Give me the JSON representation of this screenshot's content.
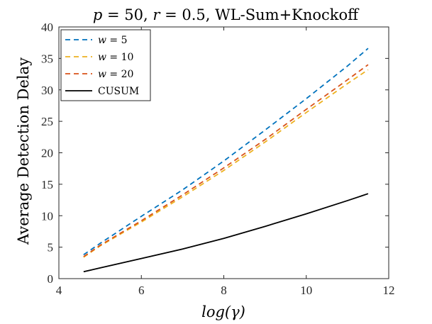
{
  "chart_data": {
    "type": "line",
    "title": "p = 50, r = 0.5, WL-Sum+Knockoff",
    "xlabel": "log(γ)",
    "ylabel": "Average Detection Delay",
    "xlim": [
      4,
      12
    ],
    "ylim": [
      0,
      40
    ],
    "xticks": [
      4,
      6,
      8,
      10,
      12
    ],
    "yticks": [
      0,
      5,
      10,
      15,
      20,
      25,
      30,
      35,
      40
    ],
    "grid": false,
    "legend_position": "top-left",
    "series": [
      {
        "name": "w = 5",
        "color": "#0072BD",
        "dash": "dashed",
        "x": [
          4.6,
          5.0,
          6.0,
          7.0,
          8.0,
          9.0,
          10.0,
          11.0,
          11.5
        ],
        "y": [
          3.8,
          5.6,
          9.9,
          14.1,
          18.7,
          23.6,
          28.6,
          33.8,
          36.6
        ]
      },
      {
        "name": "w = 10",
        "color": "#EDB120",
        "dash": "dashed",
        "x": [
          4.6,
          5.0,
          6.0,
          7.0,
          8.0,
          9.0,
          10.0,
          11.0,
          11.5
        ],
        "y": [
          3.4,
          5.2,
          9.0,
          13.0,
          17.2,
          21.7,
          26.4,
          31.0,
          33.2
        ]
      },
      {
        "name": "w = 20",
        "color": "#D95319",
        "dash": "dashed",
        "x": [
          4.6,
          5.0,
          6.0,
          7.0,
          8.0,
          9.0,
          10.0,
          11.0,
          11.5
        ],
        "y": [
          3.5,
          5.3,
          9.2,
          13.3,
          17.6,
          22.1,
          26.9,
          31.6,
          34.0
        ]
      },
      {
        "name": "CUSUM",
        "color": "#000000",
        "dash": "solid",
        "x": [
          4.6,
          5.0,
          6.0,
          7.0,
          8.0,
          9.0,
          10.0,
          11.0,
          11.5
        ],
        "y": [
          1.1,
          1.7,
          3.2,
          4.7,
          6.4,
          8.3,
          10.3,
          12.4,
          13.5
        ]
      }
    ]
  }
}
